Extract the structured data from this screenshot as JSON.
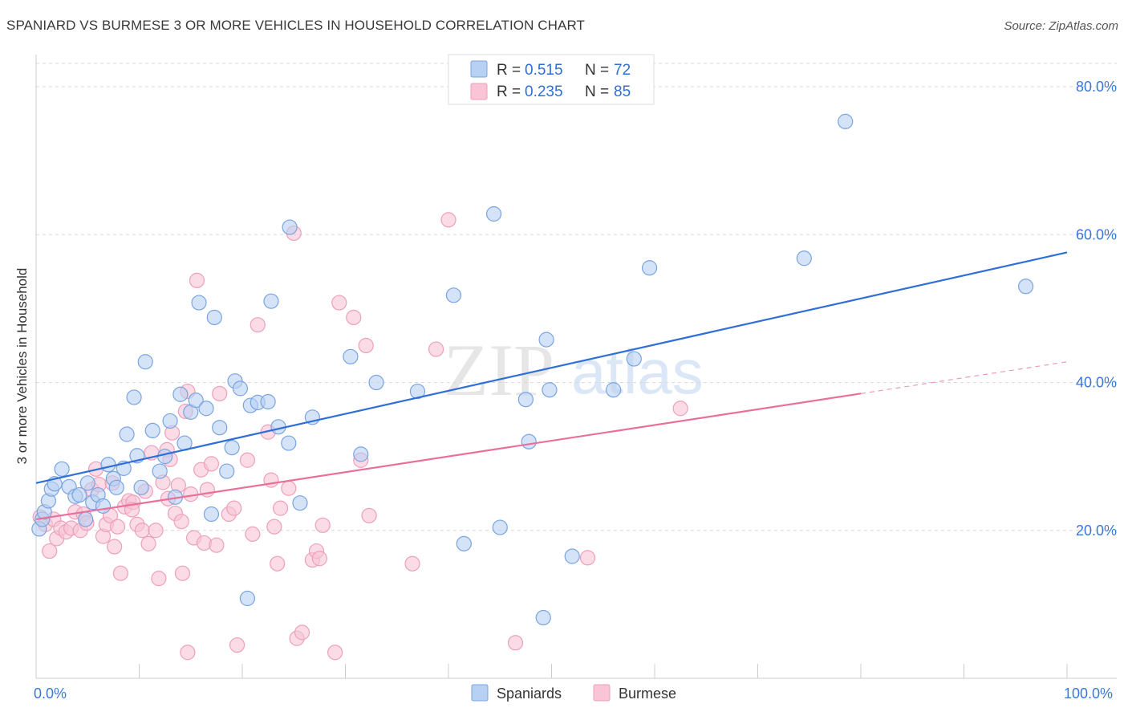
{
  "title": "SPANIARD VS BURMESE 3 OR MORE VEHICLES IN HOUSEHOLD CORRELATION CHART",
  "source": "Source: ZipAtlas.com",
  "watermark": {
    "zip": "ZIP",
    "atlas": "atlas"
  },
  "colors": {
    "blue": "#2f6fd6",
    "blue_fill": "#b8d0f1",
    "blue_stroke": "#7aa4e0",
    "pink": "#e8709a",
    "pink_fill": "#f8c4d6",
    "pink_stroke": "#ee9fbb",
    "grid": "#d9d9d9",
    "tick": "#3a78d8"
  },
  "stats": {
    "r_label": "R =",
    "n_label": "N =",
    "spaniards": {
      "r": "0.515",
      "n": "72"
    },
    "burmese": {
      "r": "0.235",
      "n": "85"
    }
  },
  "chart_data": {
    "type": "scatter",
    "title": "SPANIARD VS BURMESE 3 OR MORE VEHICLES IN HOUSEHOLD CORRELATION CHART",
    "xlabel": "",
    "ylabel": "3 or more Vehicles in Household",
    "xlim": [
      0,
      100
    ],
    "ylim": [
      0,
      85
    ],
    "x_tick_labels": [
      "0.0%",
      "100.0%"
    ],
    "y_ticks": [
      20,
      40,
      60,
      80
    ],
    "y_tick_labels": [
      "20.0%",
      "40.0%",
      "60.0%",
      "80.0%"
    ],
    "legend": [
      "Spaniards",
      "Burmese"
    ],
    "series": [
      {
        "name": "Spaniards",
        "trend": {
          "x": [
            0,
            100
          ],
          "y": [
            26.4,
            57.6
          ]
        },
        "points": [
          [
            0.3,
            20.2
          ],
          [
            0.6,
            21.5
          ],
          [
            0.8,
            22.5
          ],
          [
            1.2,
            24.0
          ],
          [
            1.5,
            25.6
          ],
          [
            1.8,
            26.3
          ],
          [
            2.5,
            28.3
          ],
          [
            3.2,
            25.9
          ],
          [
            3.8,
            24.6
          ],
          [
            4.2,
            24.8
          ],
          [
            4.8,
            21.5
          ],
          [
            5.0,
            26.4
          ],
          [
            5.5,
            23.8
          ],
          [
            6.0,
            24.8
          ],
          [
            6.5,
            23.3
          ],
          [
            7.0,
            28.9
          ],
          [
            7.5,
            27.0
          ],
          [
            7.8,
            25.8
          ],
          [
            8.5,
            28.4
          ],
          [
            8.8,
            33.0
          ],
          [
            9.5,
            38.0
          ],
          [
            9.8,
            30.1
          ],
          [
            10.2,
            25.8
          ],
          [
            10.6,
            42.8
          ],
          [
            11.3,
            33.5
          ],
          [
            12.0,
            28.0
          ],
          [
            12.5,
            30.0
          ],
          [
            13.0,
            34.8
          ],
          [
            13.5,
            24.5
          ],
          [
            14.0,
            38.4
          ],
          [
            14.4,
            31.8
          ],
          [
            15.0,
            36.0
          ],
          [
            15.5,
            37.6
          ],
          [
            15.8,
            50.8
          ],
          [
            16.5,
            36.5
          ],
          [
            17.0,
            22.2
          ],
          [
            17.3,
            48.8
          ],
          [
            17.8,
            33.9
          ],
          [
            18.5,
            28.0
          ],
          [
            19.0,
            31.2
          ],
          [
            19.3,
            40.2
          ],
          [
            19.8,
            39.2
          ],
          [
            20.5,
            10.8
          ],
          [
            20.8,
            36.9
          ],
          [
            21.5,
            37.3
          ],
          [
            22.5,
            37.4
          ],
          [
            22.8,
            51.0
          ],
          [
            23.5,
            34.0
          ],
          [
            24.5,
            31.8
          ],
          [
            24.6,
            61.0
          ],
          [
            25.6,
            23.7
          ],
          [
            26.8,
            35.3
          ],
          [
            30.5,
            43.5
          ],
          [
            31.5,
            30.3
          ],
          [
            33.0,
            40.0
          ],
          [
            37.0,
            38.8
          ],
          [
            40.5,
            51.8
          ],
          [
            41.5,
            18.2
          ],
          [
            44.4,
            62.8
          ],
          [
            45.0,
            20.4
          ],
          [
            47.5,
            37.7
          ],
          [
            47.8,
            32.0
          ],
          [
            49.2,
            8.2
          ],
          [
            49.5,
            45.8
          ],
          [
            49.8,
            39.0
          ],
          [
            52.0,
            16.5
          ],
          [
            56.0,
            39.0
          ],
          [
            58.0,
            43.2
          ],
          [
            59.5,
            55.5
          ],
          [
            74.5,
            56.8
          ],
          [
            78.5,
            75.3
          ],
          [
            96.0,
            53.0
          ]
        ]
      },
      {
        "name": "Burmese",
        "trend": {
          "x": [
            0,
            80
          ],
          "y": [
            21.5,
            38.5
          ]
        },
        "trend_extension": {
          "x": [
            80,
            100
          ],
          "y": [
            38.5,
            42.8
          ]
        },
        "points": [
          [
            0.4,
            21.8
          ],
          [
            0.9,
            20.8
          ],
          [
            1.3,
            17.2
          ],
          [
            1.7,
            21.5
          ],
          [
            2.0,
            18.9
          ],
          [
            2.4,
            20.3
          ],
          [
            2.9,
            19.8
          ],
          [
            3.4,
            20.3
          ],
          [
            3.8,
            22.5
          ],
          [
            4.3,
            20.0
          ],
          [
            4.6,
            22.2
          ],
          [
            4.9,
            21.0
          ],
          [
            5.4,
            25.5
          ],
          [
            5.8,
            28.3
          ],
          [
            6.1,
            26.2
          ],
          [
            6.5,
            19.2
          ],
          [
            6.8,
            20.8
          ],
          [
            7.2,
            22.0
          ],
          [
            7.6,
            17.8
          ],
          [
            7.9,
            20.5
          ],
          [
            8.2,
            14.2
          ],
          [
            8.6,
            23.2
          ],
          [
            9.0,
            24.0
          ],
          [
            9.4,
            23.8
          ],
          [
            9.8,
            20.8
          ],
          [
            10.3,
            20.0
          ],
          [
            10.6,
            25.3
          ],
          [
            10.9,
            18.2
          ],
          [
            11.2,
            30.5
          ],
          [
            11.6,
            20.0
          ],
          [
            11.9,
            13.5
          ],
          [
            12.3,
            26.5
          ],
          [
            12.7,
            30.9
          ],
          [
            13.0,
            29.6
          ],
          [
            13.2,
            33.2
          ],
          [
            13.5,
            22.3
          ],
          [
            13.8,
            26.1
          ],
          [
            14.1,
            21.2
          ],
          [
            14.2,
            14.2
          ],
          [
            14.5,
            36.1
          ],
          [
            14.7,
            38.8
          ],
          [
            15.0,
            24.9
          ],
          [
            15.3,
            19.0
          ],
          [
            15.6,
            53.8
          ],
          [
            16.0,
            28.2
          ],
          [
            16.3,
            18.3
          ],
          [
            16.6,
            25.5
          ],
          [
            17.0,
            29.0
          ],
          [
            17.5,
            18.0
          ],
          [
            17.8,
            38.5
          ],
          [
            18.7,
            22.2
          ],
          [
            19.2,
            23.0
          ],
          [
            19.5,
            4.5
          ],
          [
            20.5,
            29.5
          ],
          [
            21.0,
            19.5
          ],
          [
            21.5,
            47.8
          ],
          [
            22.5,
            33.3
          ],
          [
            22.8,
            26.8
          ],
          [
            23.1,
            20.5
          ],
          [
            23.4,
            15.5
          ],
          [
            23.7,
            23.0
          ],
          [
            24.5,
            25.7
          ],
          [
            25.0,
            60.2
          ],
          [
            25.3,
            5.4
          ],
          [
            25.8,
            6.2
          ],
          [
            26.8,
            16.0
          ],
          [
            27.2,
            17.2
          ],
          [
            27.5,
            16.2
          ],
          [
            27.8,
            20.7
          ],
          [
            29.0,
            3.5
          ],
          [
            29.4,
            50.8
          ],
          [
            30.8,
            48.8
          ],
          [
            31.5,
            29.5
          ],
          [
            32.0,
            45.0
          ],
          [
            32.3,
            22.0
          ],
          [
            36.5,
            15.5
          ],
          [
            38.8,
            44.5
          ],
          [
            40.0,
            62.0
          ],
          [
            46.5,
            4.8
          ],
          [
            53.5,
            16.3
          ],
          [
            62.5,
            36.5
          ],
          [
            14.7,
            3.5
          ],
          [
            9.3,
            22.8
          ],
          [
            7.4,
            26.4
          ],
          [
            12.8,
            24.3
          ]
        ]
      }
    ]
  },
  "legend": {
    "spaniards": "Spaniards",
    "burmese": "Burmese"
  }
}
